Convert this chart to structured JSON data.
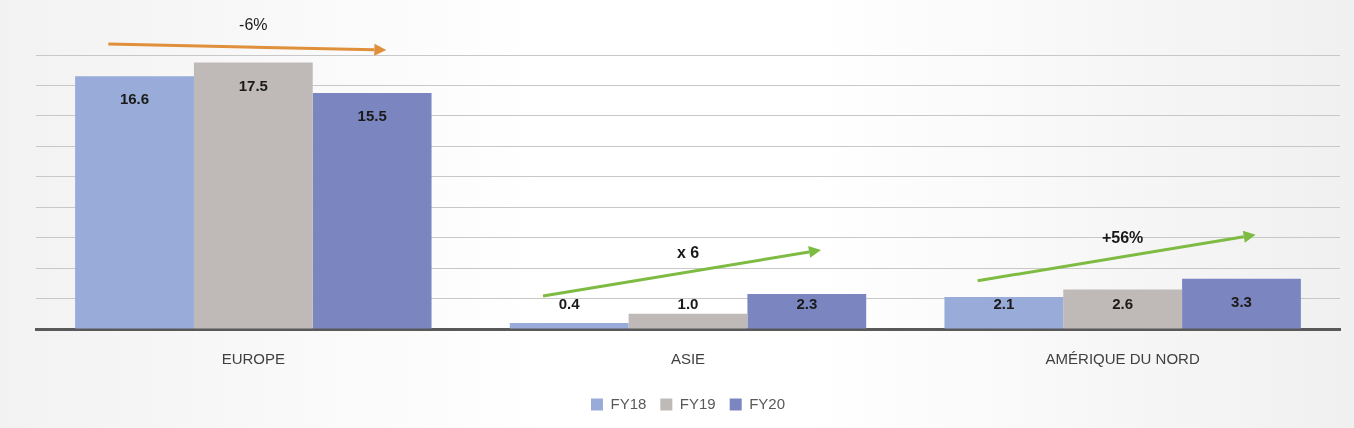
{
  "chart_data": {
    "type": "bar",
    "categories": [
      "EUROPE",
      "ASIE",
      "AMÉRIQUE DU NORD"
    ],
    "series": [
      {
        "name": "FY18",
        "color": "#98abd9",
        "values": [
          16.6,
          0.4,
          2.1
        ],
        "value_labels": [
          "16.6",
          "0.4",
          "2.1"
        ]
      },
      {
        "name": "FY19",
        "color": "#bfbab7",
        "values": [
          17.5,
          1.0,
          2.6
        ],
        "value_labels": [
          "17.5",
          "1.0",
          "2.6"
        ]
      },
      {
        "name": "FY20",
        "color": "#7b86c0",
        "values": [
          15.5,
          2.3,
          3.3
        ],
        "value_labels": [
          "15.5",
          "2.3",
          "3.3"
        ]
      }
    ],
    "ylim": [
      0,
      18
    ],
    "yticks": [
      {
        "value": 0,
        "label": null
      },
      {
        "value": 2,
        "label": null
      },
      {
        "value": 4,
        "label": null
      },
      {
        "value": 6,
        "label": null
      },
      {
        "value": 8,
        "label": null
      },
      {
        "value": 10,
        "label": null
      },
      {
        "value": 12,
        "label": null
      },
      {
        "value": 14,
        "label": null
      },
      {
        "value": 16,
        "label": null
      },
      {
        "value": 18,
        "label": null
      }
    ],
    "tick_labels": "x",
    "grid": "y",
    "legend": "bottom",
    "annotations": [
      "-6%",
      "x 6",
      "+56%"
    ]
  }
}
